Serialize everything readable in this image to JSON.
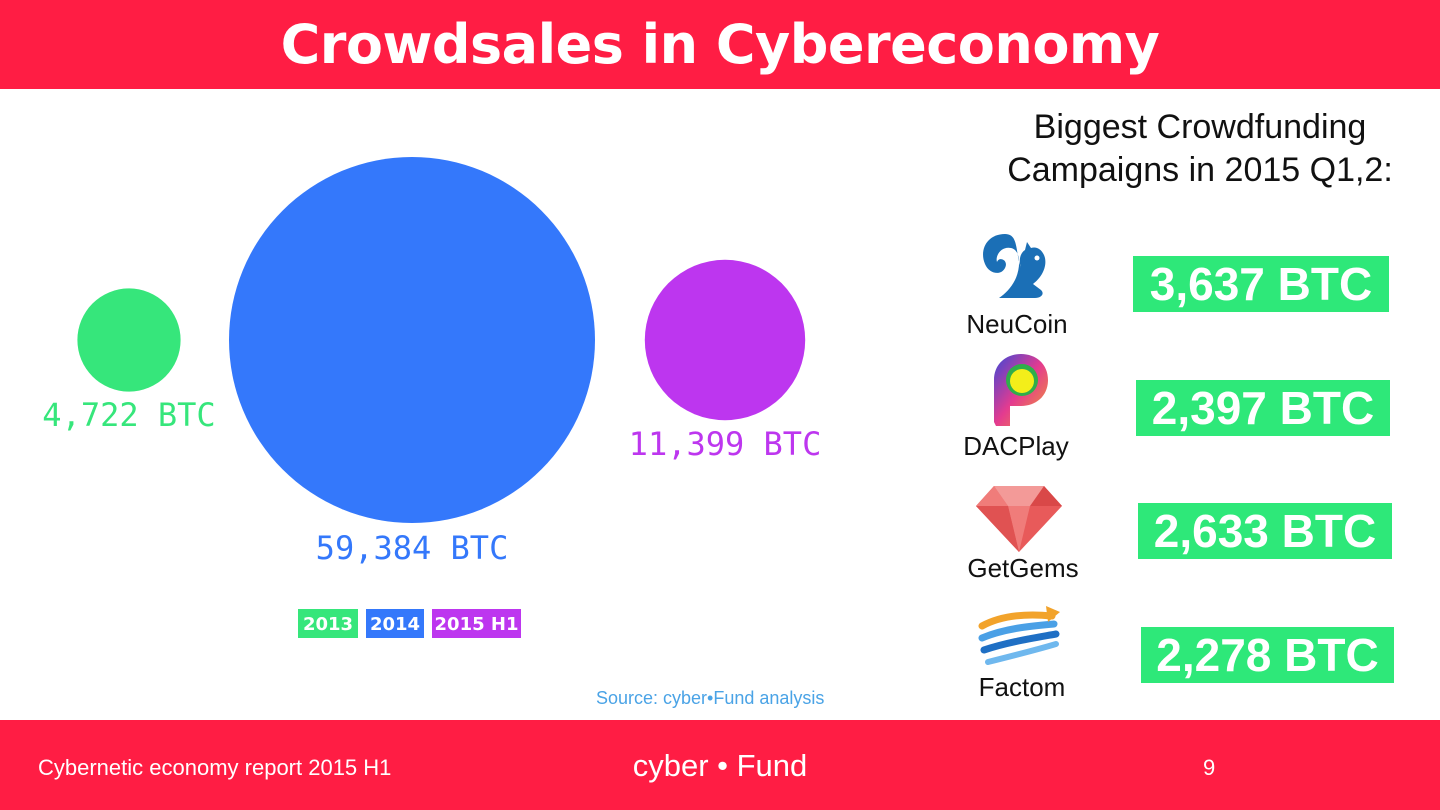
{
  "header": {
    "title": "Crowdsales in Cybereconomy"
  },
  "chart_data": {
    "type": "bubble",
    "series": [
      {
        "name": "2013",
        "value": 4722,
        "label": "4,722 BTC",
        "color": "#36e67b"
      },
      {
        "name": "2014",
        "value": 59384,
        "label": "59,384 BTC",
        "color": "#3478fb"
      },
      {
        "name": "2015 H1",
        "value": 11399,
        "label": "11,399 BTC",
        "color": "#bd36ef"
      }
    ],
    "legend": [
      "2013",
      "2014",
      "2015 H1"
    ],
    "legend_position": "bottom"
  },
  "source": "Source: cyber•Fund analysis",
  "campaigns": {
    "title_line1": "Biggest Crowdfunding",
    "title_line2": "Campaigns in 2015 Q1,2:",
    "items": [
      {
        "name": "NeuCoin",
        "amount": "3,637 BTC",
        "icon": "squirrel-icon"
      },
      {
        "name": "DACPlay",
        "amount": "2,397 BTC",
        "icon": "dacplay-icon"
      },
      {
        "name": "GetGems",
        "amount": "2,633 BTC",
        "icon": "gem-icon"
      },
      {
        "name": "Factom",
        "amount": "2,278 BTC",
        "icon": "factom-icon"
      }
    ]
  },
  "footer": {
    "left": "Cybernetic economy report 2015 H1",
    "center": "cyber • Fund",
    "page": "9"
  },
  "colors": {
    "brand": "#ff1d44",
    "amount_bg": "#2ee879"
  }
}
